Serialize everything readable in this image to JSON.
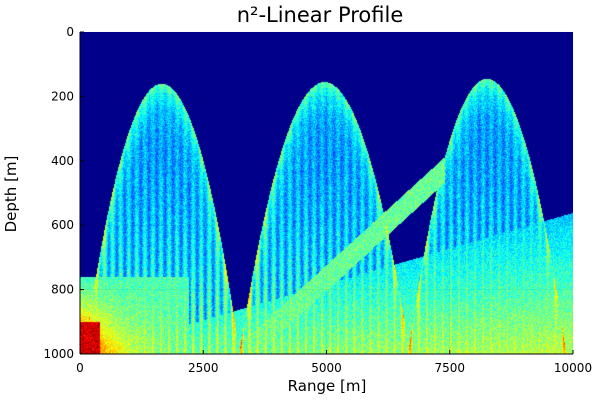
{
  "chart_data": {
    "type": "heatmap",
    "title": "n²-Linear Profile",
    "xlabel": "Range [m]",
    "ylabel": "Depth [m]",
    "xlim": [
      0,
      10000
    ],
    "ylim": [
      0,
      1000
    ],
    "y_axis_inverted": true,
    "xticks": [
      0,
      2500,
      5000,
      7500,
      10000
    ],
    "yticks": [
      0,
      200,
      400,
      600,
      800,
      1000
    ],
    "colormap": "jet",
    "background_color": "#00008b",
    "grid": true,
    "colorbar": false,
    "features": {
      "arches": [
        {
          "start": 50,
          "peak_range": 1650,
          "end": 3200,
          "apex_depth": 165
        },
        {
          "start": 3200,
          "peak_range": 4950,
          "end": 6650,
          "apex_depth": 160
        },
        {
          "start": 6650,
          "peak_range": 8250,
          "end": 9850,
          "apex_depth": 150
        }
      ],
      "rising_front": {
        "start": [
          100,
          1000
        ],
        "end": [
          10000,
          560
        ]
      },
      "hot_spot": {
        "range": [
          0,
          400
        ],
        "depth": [
          900,
          1000
        ]
      }
    }
  }
}
